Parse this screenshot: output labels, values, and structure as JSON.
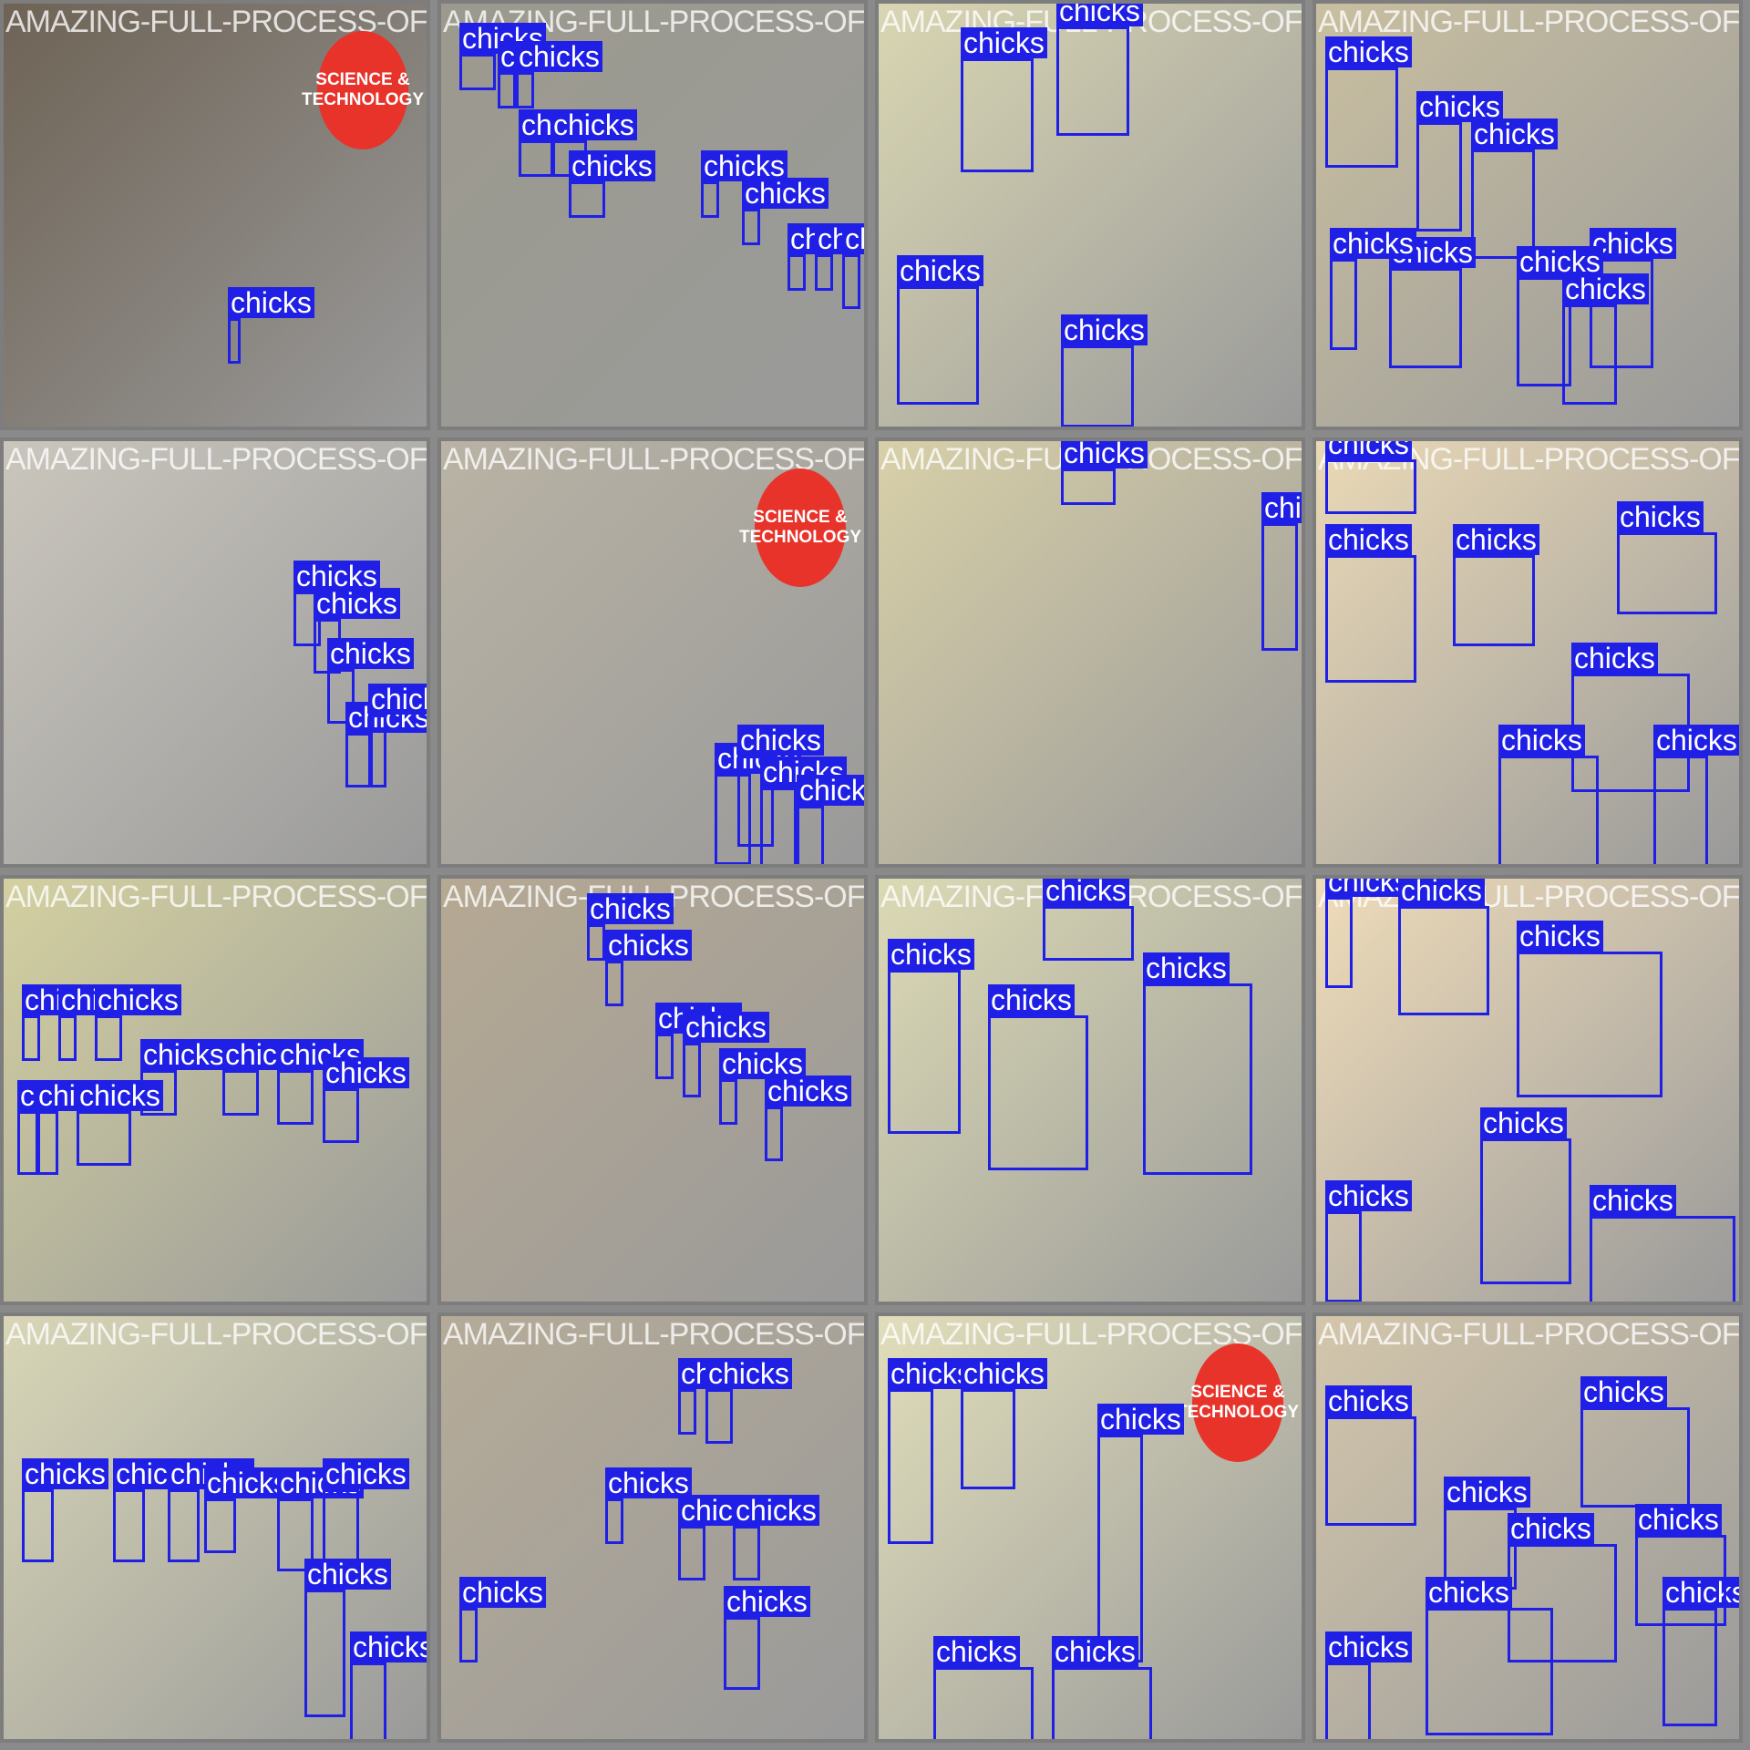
{
  "title_text": "AMAZING-FULL-PROCESS-OF-MODERN-HIGH-TECH",
  "box_label": "chicks",
  "logo_text": "SCIENCE & TECHNOLOGY",
  "colors": {
    "box": "#1f1fe6",
    "label_text": "#ffffff",
    "frame": "#7d7d7d",
    "logo": "#e8332a"
  },
  "tiles": [
    {
      "row": 0,
      "col": 0,
      "bg": "#6e6355",
      "logo": true
    },
    {
      "row": 0,
      "col": 1,
      "bg": "#9c9a8e"
    },
    {
      "row": 0,
      "col": 2,
      "bg": "#d9d6b2"
    },
    {
      "row": 0,
      "col": 3,
      "bg": "#c9bfa0"
    },
    {
      "row": 1,
      "col": 0,
      "bg": "#cac6bd"
    },
    {
      "row": 1,
      "col": 1,
      "bg": "#b9b3a4",
      "logo": true
    },
    {
      "row": 1,
      "col": 2,
      "bg": "#d8d0a8"
    },
    {
      "row": 1,
      "col": 3,
      "bg": "#ead9b6"
    },
    {
      "row": 2,
      "col": 0,
      "bg": "#d3d0a0"
    },
    {
      "row": 2,
      "col": 1,
      "bg": "#b6a993"
    },
    {
      "row": 2,
      "col": 2,
      "bg": "#dcdab4"
    },
    {
      "row": 2,
      "col": 3,
      "bg": "#efdcb9"
    },
    {
      "row": 3,
      "col": 0,
      "bg": "#d8d6b6"
    },
    {
      "row": 3,
      "col": 1,
      "bg": "#b5ab98"
    },
    {
      "row": 3,
      "col": 2,
      "bg": "#e1deba",
      "logo": true
    },
    {
      "row": 3,
      "col": 3,
      "bg": "#d3c6ab"
    }
  ]
}
